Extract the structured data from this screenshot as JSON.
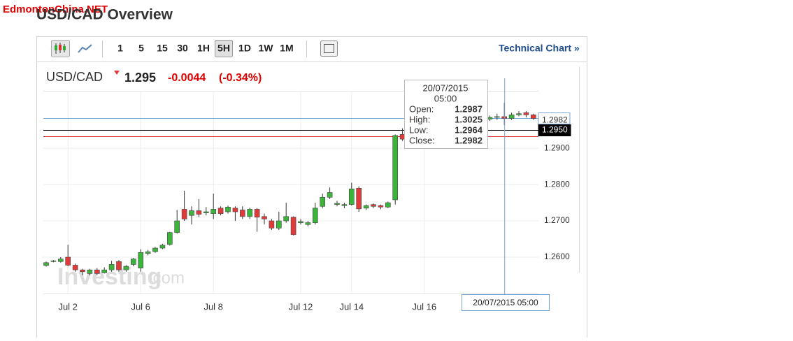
{
  "watermark_site": "EdmontonChina.NET",
  "page_title": "USD/CAD Overview",
  "toolbar": {
    "intervals": [
      "1",
      "5",
      "15",
      "30",
      "1H",
      "5H",
      "1D",
      "1W",
      "1M"
    ],
    "active": "5H",
    "link": "Technical Chart »"
  },
  "quote": {
    "symbol": "USD/CAD",
    "price": "1.295",
    "change": "-0.0044",
    "change_pct": "(-0.34%)"
  },
  "chart_data": {
    "type": "candlestick",
    "brand": "Investing",
    "brand_suffix": ".com",
    "up_color": "#3cb43c",
    "down_color": "#e03a3a",
    "categories": [
      null,
      null,
      null,
      "Jul 2",
      null,
      null,
      null,
      null,
      null,
      null,
      null,
      null,
      null,
      "Jul 6",
      null,
      null,
      null,
      null,
      null,
      null,
      null,
      null,
      null,
      "Jul 8",
      null,
      null,
      null,
      null,
      null,
      null,
      null,
      null,
      null,
      null,
      null,
      "Jul 12",
      null,
      null,
      null,
      null,
      null,
      null,
      "Jul 14",
      null,
      null,
      null,
      null,
      null,
      null,
      null,
      null,
      null,
      "Jul 16",
      null,
      null,
      null,
      null,
      null,
      null,
      null,
      null,
      null,
      null,
      null,
      null,
      null,
      null,
      null
    ],
    "open": [
      1.2577,
      1.2588,
      1.2588,
      1.26,
      1.2578,
      1.2565,
      1.2555,
      1.2565,
      1.2557,
      1.2565,
      1.2588,
      1.2565,
      1.258,
      1.257,
      1.261,
      1.2615,
      1.2625,
      1.2635,
      1.2668,
      1.2732,
      1.2715,
      1.2728,
      1.2722,
      1.272,
      1.2735,
      1.2725,
      1.2735,
      1.273,
      1.2712,
      1.2732,
      1.2712,
      1.27,
      1.268,
      1.27,
      1.271,
      1.2695,
      1.269,
      1.2695,
      1.274,
      1.2765,
      1.2745,
      1.2742,
      1.2745,
      1.279,
      1.2735,
      1.2745,
      1.2742,
      1.2738,
      1.2758,
      1.2938,
      null,
      null,
      null,
      null,
      null,
      null,
      null,
      null,
      null,
      null,
      null,
      1.298,
      1.2985,
      1.2987,
      1.2982,
      1.2992,
      1.2998,
      1.2992
    ],
    "high": [
      1.2588,
      1.2592,
      1.26,
      1.2634,
      1.2582,
      1.2568,
      1.2568,
      1.257,
      1.2572,
      1.259,
      1.2592,
      1.2578,
      1.2598,
      1.2622,
      1.262,
      1.2628,
      1.2637,
      1.267,
      1.273,
      1.2783,
      1.274,
      1.276,
      1.2738,
      1.2775,
      1.274,
      1.2742,
      1.274,
      1.274,
      1.2736,
      1.2735,
      1.272,
      1.2705,
      1.2725,
      1.275,
      1.2712,
      1.2705,
      1.27,
      1.275,
      1.2775,
      1.2792,
      1.2755,
      1.275,
      1.2805,
      1.2795,
      1.2745,
      1.2748,
      1.2745,
      1.2753,
      1.2938,
      1.2955,
      null,
      null,
      null,
      null,
      null,
      null,
      null,
      null,
      null,
      null,
      null,
      1.299,
      1.2995,
      1.3025,
      1.2998,
      1.3002,
      1.3002,
      1.2995
    ],
    "low": [
      1.2574,
      1.2586,
      1.2585,
      1.2575,
      1.256,
      1.255,
      1.255,
      1.255,
      1.2555,
      1.256,
      1.256,
      1.256,
      1.2575,
      1.256,
      1.2605,
      1.2612,
      1.2622,
      1.2632,
      1.2665,
      1.27,
      1.269,
      1.271,
      1.2715,
      1.2705,
      1.2715,
      1.272,
      1.27,
      1.2705,
      1.2705,
      1.267,
      1.269,
      1.2675,
      1.2675,
      1.2695,
      1.266,
      1.269,
      1.2685,
      1.269,
      1.2735,
      1.276,
      1.274,
      1.2735,
      1.2742,
      1.2725,
      1.273,
      1.2735,
      1.2732,
      1.2735,
      1.2745,
      1.292,
      null,
      null,
      null,
      null,
      null,
      null,
      null,
      null,
      null,
      null,
      null,
      1.2975,
      1.2978,
      1.2964,
      1.2978,
      1.2988,
      1.2985,
      1.2978
    ],
    "close": [
      1.2585,
      1.259,
      1.2595,
      1.2578,
      1.2565,
      1.256,
      1.2565,
      1.2555,
      1.2565,
      1.258,
      1.2565,
      1.2575,
      1.2595,
      1.2613,
      1.2615,
      1.2625,
      1.2633,
      1.2668,
      1.27,
      1.2705,
      1.2728,
      1.2718,
      1.2725,
      1.2732,
      1.272,
      1.2738,
      1.2725,
      1.2712,
      1.2732,
      1.271,
      1.2705,
      1.268,
      1.27,
      1.2712,
      1.2662,
      1.2698,
      1.2695,
      1.2735,
      1.2765,
      1.2778,
      1.2748,
      1.2745,
      1.2788,
      1.2733,
      1.2742,
      1.274,
      1.2738,
      1.275,
      1.2935,
      1.2925,
      null,
      null,
      null,
      null,
      null,
      null,
      null,
      null,
      null,
      null,
      null,
      1.2985,
      1.2987,
      1.2982,
      1.2992,
      1.2995,
      1.2992,
      1.2982
    ],
    "ylim": [
      1.25,
      1.3058
    ],
    "yticks": [
      {
        "value": 1.26,
        "label": "1.2600"
      },
      {
        "value": 1.27,
        "label": "1.2700"
      },
      {
        "value": 1.28,
        "label": "1.2800"
      },
      {
        "value": 1.29,
        "label": "1.2900"
      }
    ],
    "price_lines": [
      {
        "value": 1.2982,
        "label": "1.2982",
        "color": "#7aa6d0"
      },
      {
        "value": 1.295,
        "label": "1.2950",
        "color": "#000000"
      },
      {
        "value": 1.2933,
        "color": "#e03030"
      }
    ],
    "tooltip": {
      "date": "20/07/2015",
      "time": "05:00",
      "labels": [
        "Open:",
        "High:",
        "Low:",
        "Close:"
      ]
    },
    "crosshair_label": "20/07/2015 05:00",
    "grid": true
  }
}
